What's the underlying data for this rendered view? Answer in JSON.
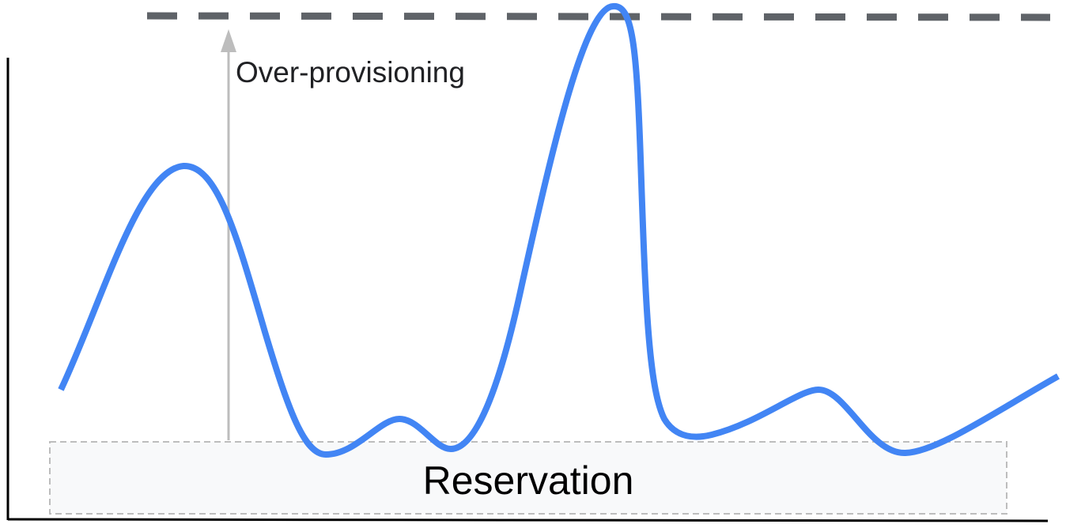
{
  "diagram": {
    "reservation_label": "Reservation",
    "over_provisioning_label": "Over-provisioning"
  },
  "colors": {
    "usage_line": "#4285f4",
    "capacity_line": "#5f6368",
    "reservation_fill": "#f8f9fa",
    "reservation_border": "#bdbdbd",
    "arrow": "#bdbdbd",
    "axis": "#000000"
  }
}
